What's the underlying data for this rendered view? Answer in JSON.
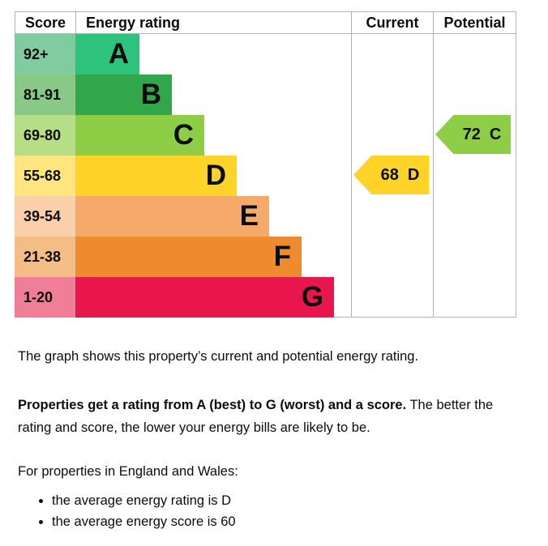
{
  "chart_data": {
    "type": "bar",
    "title": "Energy efficiency rating chart",
    "columns": [
      "Score",
      "Energy rating",
      "Current",
      "Potential"
    ],
    "bands": [
      {
        "band": "A",
        "score_range": "92+",
        "bar_color": "#2dc37d",
        "score_bg": "#80cca0"
      },
      {
        "band": "B",
        "score_range": "81-91",
        "bar_color": "#32a64a",
        "score_bg": "#89c988"
      },
      {
        "band": "C",
        "score_range": "69-80",
        "bar_color": "#8dce46",
        "score_bg": "#b5de87"
      },
      {
        "band": "D",
        "score_range": "55-68",
        "bar_color": "#ffd328",
        "score_bg": "#ffe580"
      },
      {
        "band": "E",
        "score_range": "39-54",
        "bar_color": "#f5aa6c",
        "score_bg": "#fad0aa"
      },
      {
        "band": "F",
        "score_range": "21-38",
        "bar_color": "#ee8b2e",
        "score_bg": "#f5bd86"
      },
      {
        "band": "G",
        "score_range": "1-20",
        "bar_color": "#e8164c",
        "score_bg": "#f07e96"
      }
    ],
    "current": {
      "score": "68",
      "band": "D",
      "color": "#ffd328"
    },
    "potential": {
      "score": "72",
      "band": "C",
      "color": "#8dce46"
    }
  },
  "text": {
    "para1": "The graph shows this property’s current and potential energy rating.",
    "para2_bold": "Properties get a rating from A (best) to G (worst) and a score.",
    "para2_rest": " The better the rating and score, the lower your energy bills are likely to be.",
    "para3": "For properties in England and Wales:",
    "bullets": [
      "the average energy rating is D",
      "the average energy score is 60"
    ]
  }
}
